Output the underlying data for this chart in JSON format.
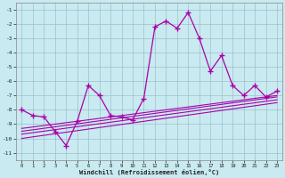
{
  "xlabel": "Windchill (Refroidissement éolien,°C)",
  "bg_color": "#c8eaf0",
  "grid_color": "#9dbfcc",
  "line_color": "#aa00aa",
  "xlim": [
    -0.5,
    23.5
  ],
  "ylim": [
    -11.5,
    -0.5
  ],
  "xticks": [
    0,
    1,
    2,
    3,
    4,
    5,
    6,
    7,
    8,
    9,
    10,
    11,
    12,
    13,
    14,
    15,
    16,
    17,
    18,
    19,
    20,
    21,
    22,
    23
  ],
  "yticks": [
    -1,
    -2,
    -3,
    -4,
    -5,
    -6,
    -7,
    -8,
    -9,
    -10,
    -11
  ],
  "main_x": [
    0,
    1,
    2,
    3,
    4,
    5,
    6,
    7,
    8,
    9,
    10,
    11,
    12,
    13,
    14,
    15,
    16,
    17,
    18,
    19,
    20,
    21,
    22,
    23
  ],
  "main_y": [
    -8.0,
    -8.4,
    -8.5,
    -9.5,
    -10.5,
    -8.8,
    -6.3,
    -7.0,
    -8.4,
    -8.5,
    -8.7,
    -7.2,
    -2.2,
    -1.8,
    -2.3,
    -1.2,
    -3.0,
    -5.3,
    -4.2,
    -6.3,
    -7.0,
    -6.3,
    -7.1,
    -6.7
  ],
  "line2_x": [
    0,
    23
  ],
  "line2_y": [
    -9.3,
    -7.0
  ],
  "line3_x": [
    0,
    23
  ],
  "line3_y": [
    -9.5,
    -7.1
  ],
  "line4_x": [
    0,
    23
  ],
  "line4_y": [
    -9.7,
    -7.3
  ],
  "line5_x": [
    0,
    23
  ],
  "line5_y": [
    -10.0,
    -7.5
  ]
}
